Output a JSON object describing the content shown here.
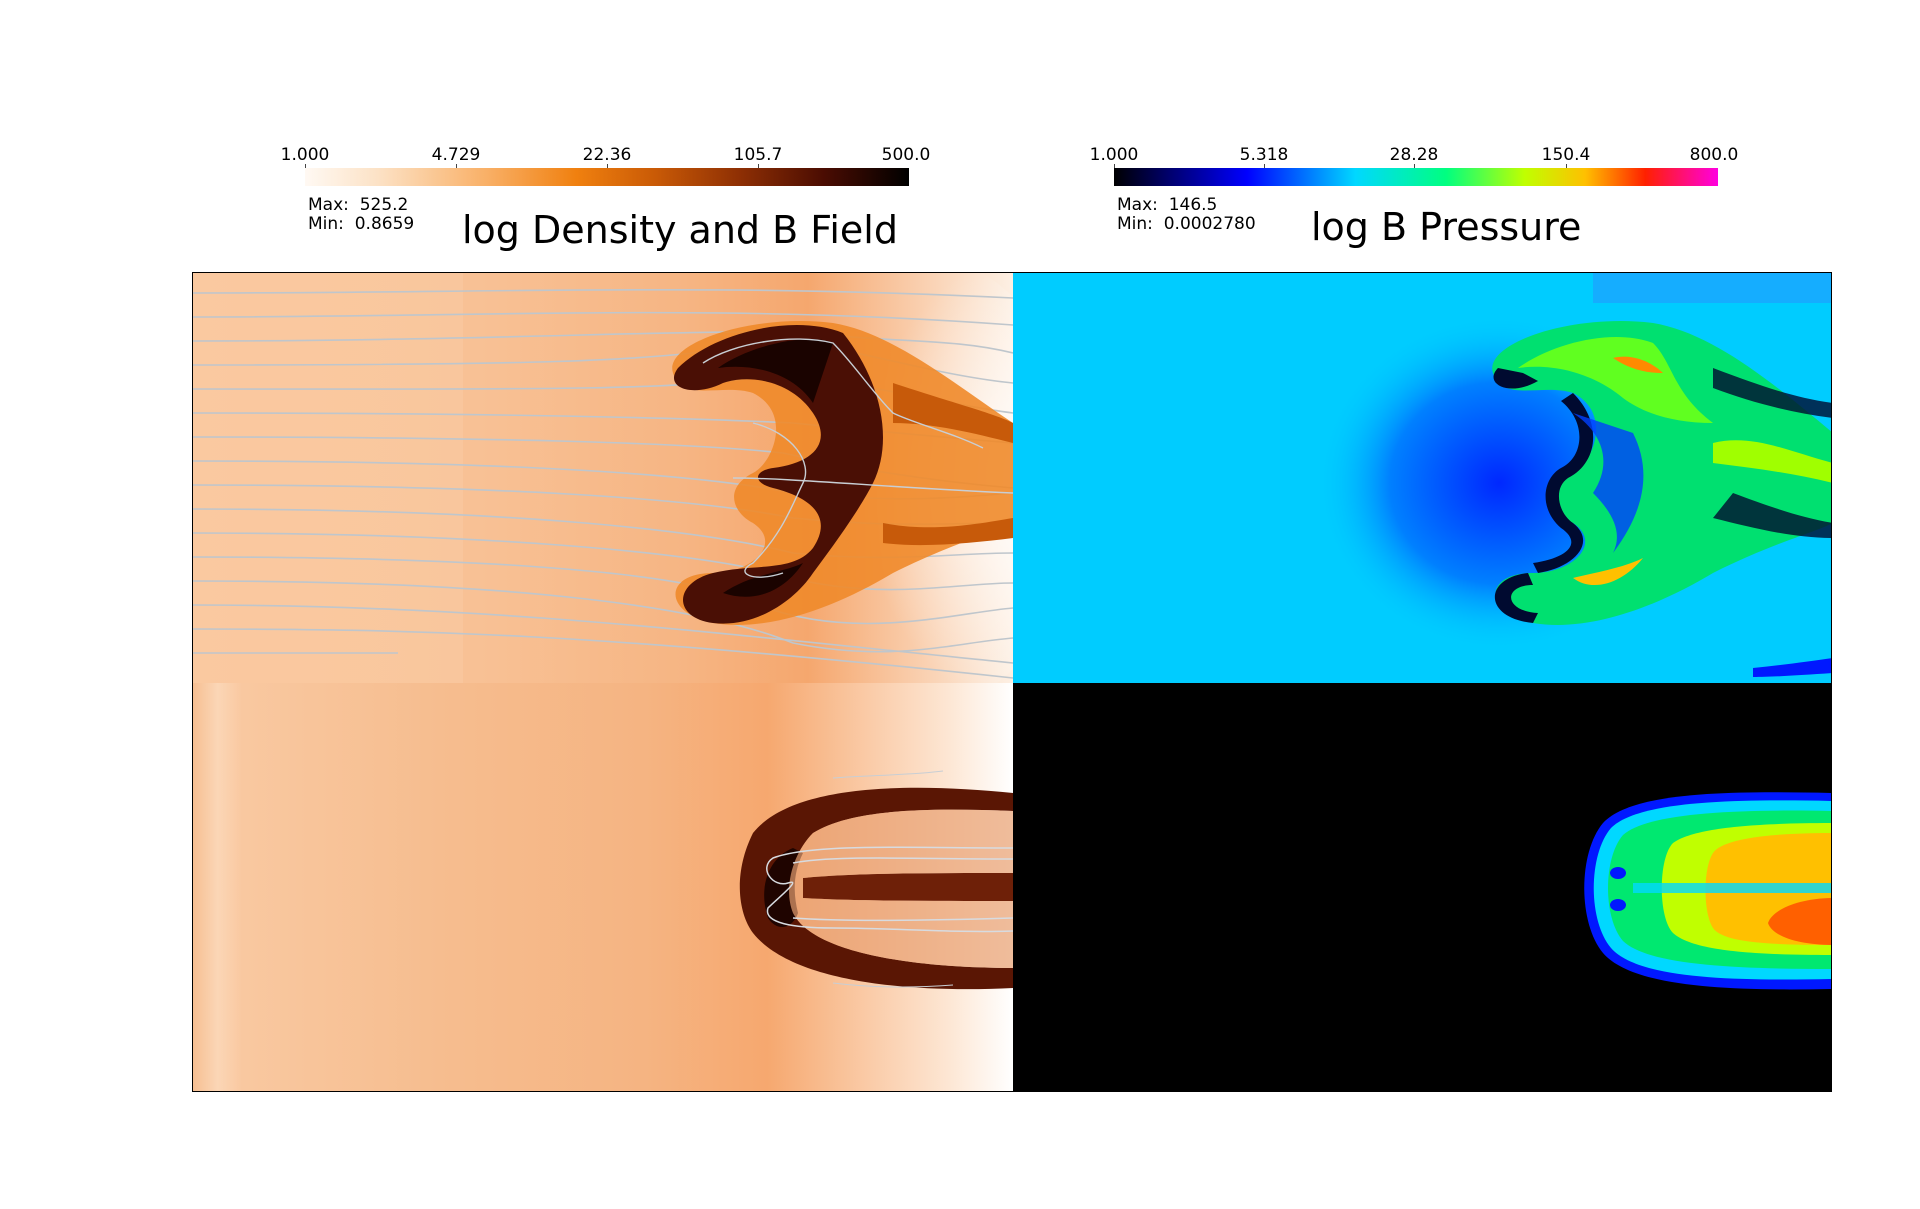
{
  "left_plot": {
    "title": "log Density and B Field",
    "colorbar": {
      "ticks": [
        "1.000",
        "4.729",
        "22.36",
        "105.7",
        "500.0"
      ],
      "colors": [
        "#fff9f3",
        "#f0800f",
        "#8e2f04",
        "#000000"
      ]
    },
    "max_label": "Max:",
    "max_value": "525.2",
    "min_label": "Min:",
    "min_value": "0.8659"
  },
  "right_plot": {
    "title": "log B Pressure",
    "colorbar": {
      "ticks": [
        "1.000",
        "5.318",
        "28.28",
        "150.4",
        "800.0"
      ],
      "colors": [
        "#000000",
        "#0000ff",
        "#00d8ff",
        "#00ff80",
        "#ffc000",
        "#ff2000",
        "#ff00e0"
      ]
    },
    "max_label": "Max:",
    "max_value": "146.5",
    "min_label": "Min:",
    "min_value": "0.0002780"
  }
}
